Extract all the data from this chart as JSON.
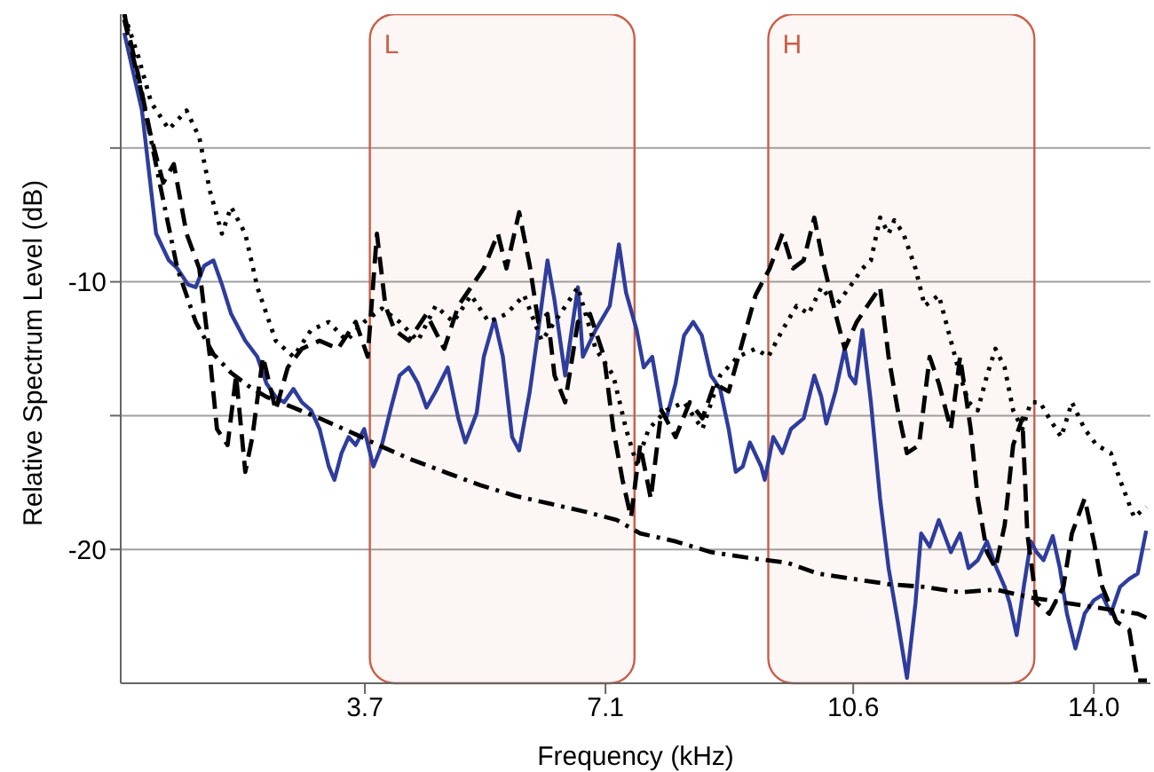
{
  "chart_data": {
    "type": "line",
    "xlabel": "Frequency (kHz)",
    "ylabel": "Relative Spectrum Level (dB)",
    "xlim": [
      0.25,
      14.8
    ],
    "xticks": [
      3.7,
      7.1,
      10.6,
      {
        "value": 14,
        "label": "14.0"
      }
    ],
    "ylim": [
      -25,
      0
    ],
    "yticks": [
      -20,
      {
        "value": -15,
        "label": null
      },
      -10,
      {
        "value": -5,
        "label": null
      }
    ],
    "grid": "y",
    "legend": false,
    "marker": "none",
    "bands": [
      {
        "axis": "x",
        "from": 3.77,
        "to": 7.51,
        "label": "L",
        "color": "#c8604a"
      },
      {
        "axis": "x",
        "from": 9.4,
        "to": 13.16,
        "label": "H",
        "color": "#c8604a"
      }
    ],
    "series": [
      {
        "color": "#2e3d9c",
        "line_style": "solid",
        "x": [
          0.3,
          0.55,
          0.75,
          0.93,
          1.05,
          1.2,
          1.31,
          1.43,
          1.56,
          1.68,
          1.81,
          2.01,
          2.18,
          2.31,
          2.44,
          2.56,
          2.69,
          2.81,
          2.94,
          3.06,
          3.19,
          3.27,
          3.37,
          3.47,
          3.57,
          3.69,
          3.82,
          3.94,
          4.07,
          4.19,
          4.32,
          4.45,
          4.57,
          4.7,
          4.87,
          5.02,
          5.12,
          5.28,
          5.38,
          5.53,
          5.65,
          5.78,
          5.88,
          6.03,
          6.13,
          6.28,
          6.38,
          6.53,
          6.71,
          6.78,
          6.96,
          7.16,
          7.29,
          7.39,
          7.54,
          7.64,
          7.76,
          7.89,
          7.96,
          8.09,
          8.21,
          8.34,
          8.46,
          8.59,
          8.72,
          8.84,
          8.94,
          9.04,
          9.14,
          9.3,
          9.35,
          9.47,
          9.6,
          9.72,
          9.9,
          10.05,
          10.15,
          10.22,
          10.35,
          10.48,
          10.55,
          10.63,
          10.73,
          10.85,
          10.98,
          11.1,
          11.23,
          11.36,
          11.48,
          11.56,
          11.68,
          11.81,
          11.98,
          12.11,
          12.23,
          12.36,
          12.49,
          12.61,
          12.74,
          12.81,
          12.91,
          13.01,
          13.11,
          13.19,
          13.29,
          13.42,
          13.52,
          13.62,
          13.74,
          13.87,
          14.0,
          14.12,
          14.24,
          14.37,
          14.5,
          14.62,
          14.74
        ],
        "values": [
          -0.7,
          -3.6,
          -8.2,
          -9.2,
          -9.5,
          -10.1,
          -10.2,
          -9.4,
          -9.2,
          -10.1,
          -11.2,
          -12.2,
          -12.8,
          -13.8,
          -14.3,
          -14.5,
          -14.0,
          -14.5,
          -14.8,
          -15.5,
          -16.9,
          -17.4,
          -16.4,
          -15.8,
          -16.1,
          -15.5,
          -16.9,
          -16.1,
          -14.7,
          -13.5,
          -13.2,
          -13.8,
          -14.7,
          -14.1,
          -13.2,
          -15.1,
          -16.0,
          -14.9,
          -12.8,
          -11.4,
          -12.8,
          -15.8,
          -16.3,
          -14.1,
          -12.2,
          -9.2,
          -10.7,
          -13.5,
          -10.2,
          -12.8,
          -11.8,
          -10.9,
          -8.6,
          -10.4,
          -11.8,
          -13.2,
          -12.8,
          -14.8,
          -15.1,
          -13.8,
          -12.0,
          -11.5,
          -12.0,
          -13.5,
          -14.0,
          -15.5,
          -17.1,
          -16.9,
          -16.0,
          -16.9,
          -17.4,
          -15.8,
          -16.4,
          -15.5,
          -15.1,
          -13.5,
          -14.3,
          -15.3,
          -14.1,
          -12.5,
          -13.5,
          -13.8,
          -11.8,
          -14.5,
          -18.1,
          -20.7,
          -22.7,
          -24.8,
          -22.0,
          -19.4,
          -19.9,
          -18.9,
          -20.1,
          -19.4,
          -20.7,
          -20.4,
          -19.7,
          -20.6,
          -21.4,
          -22.0,
          -23.2,
          -21.4,
          -19.7,
          -20.1,
          -20.4,
          -19.5,
          -20.7,
          -22.4,
          -23.7,
          -22.4,
          -21.9,
          -21.7,
          -22.4,
          -21.4,
          -21.1,
          -20.9,
          -19.3
        ]
      },
      {
        "color": "#000000",
        "line_style": "dashdot",
        "x": [
          0.3,
          0.55,
          0.8,
          1.05,
          1.31,
          1.56,
          1.81,
          2.06,
          2.31,
          2.69,
          3.06,
          3.57,
          3.89,
          4.32,
          4.82,
          5.33,
          5.83,
          6.33,
          6.83,
          7.26,
          7.59,
          8.09,
          8.59,
          9.09,
          9.67,
          10.1,
          10.6,
          11.1,
          11.61,
          12.11,
          12.61,
          13.11,
          13.62,
          14.12,
          14.62,
          14.78
        ],
        "values": [
          -0.2,
          -3.0,
          -6.3,
          -9.5,
          -11.5,
          -12.7,
          -13.4,
          -13.9,
          -14.3,
          -14.7,
          -15.1,
          -15.7,
          -16.1,
          -16.6,
          -17.1,
          -17.6,
          -18.0,
          -18.3,
          -18.6,
          -18.9,
          -19.4,
          -19.7,
          -20.1,
          -20.3,
          -20.5,
          -20.9,
          -21.1,
          -21.3,
          -21.4,
          -21.6,
          -21.5,
          -21.8,
          -22.0,
          -22.2,
          -22.4,
          -22.6
        ]
      },
      {
        "color": "#000000",
        "line_style": "dashed",
        "x": [
          0.3,
          0.5,
          0.68,
          0.85,
          1.0,
          1.18,
          1.36,
          1.51,
          1.61,
          1.76,
          1.88,
          2.01,
          2.11,
          2.26,
          2.44,
          2.61,
          2.81,
          3.06,
          3.32,
          3.57,
          3.74,
          3.87,
          3.99,
          4.12,
          4.32,
          4.57,
          4.82,
          5.02,
          5.2,
          5.38,
          5.58,
          5.7,
          5.88,
          6.03,
          6.15,
          6.28,
          6.38,
          6.53,
          6.71,
          6.88,
          7.08,
          7.21,
          7.34,
          7.46,
          7.59,
          7.74,
          7.89,
          8.09,
          8.29,
          8.47,
          8.64,
          8.84,
          9.04,
          9.22,
          9.42,
          9.6,
          9.75,
          9.9,
          10.05,
          10.17,
          10.35,
          10.48,
          10.65,
          10.8,
          10.98,
          11.1,
          11.23,
          11.36,
          11.53,
          11.68,
          11.81,
          11.98,
          12.11,
          12.26,
          12.36,
          12.49,
          12.61,
          12.74,
          12.86,
          12.99,
          13.06,
          13.19,
          13.37,
          13.57,
          13.69,
          13.87,
          14.0,
          14.12,
          14.32,
          14.5,
          14.62,
          14.75
        ],
        "values": [
          0,
          -2.3,
          -4.6,
          -6.3,
          -5.6,
          -8.2,
          -9.5,
          -12.8,
          -15.5,
          -16.1,
          -13.5,
          -17.1,
          -15.8,
          -12.8,
          -14.8,
          -13.2,
          -12.5,
          -12.2,
          -12.5,
          -11.5,
          -12.8,
          -8.2,
          -10.9,
          -11.8,
          -12.2,
          -11.2,
          -12.5,
          -10.9,
          -10.2,
          -9.5,
          -8.2,
          -9.5,
          -7.4,
          -9.4,
          -11.5,
          -11.2,
          -13.5,
          -14.5,
          -11.5,
          -11.2,
          -12.8,
          -15.5,
          -17.4,
          -18.8,
          -16.1,
          -18.1,
          -14.8,
          -15.8,
          -14.5,
          -15.1,
          -13.8,
          -14.1,
          -12.2,
          -10.5,
          -9.5,
          -8.2,
          -9.5,
          -9.2,
          -7.6,
          -9.2,
          -11.2,
          -12.5,
          -11.5,
          -10.9,
          -10.2,
          -12.8,
          -14.8,
          -16.4,
          -16.1,
          -12.8,
          -13.8,
          -15.5,
          -12.8,
          -15.5,
          -18.1,
          -20.1,
          -20.7,
          -19.1,
          -16.1,
          -15.1,
          -19.4,
          -22.0,
          -22.4,
          -21.4,
          -19.4,
          -18.1,
          -19.7,
          -21.4,
          -22.7,
          -23.0,
          -24.9,
          -24.9
        ]
      },
      {
        "color": "#000000",
        "line_style": "dotted",
        "x": [
          0.3,
          0.5,
          0.68,
          0.93,
          1.18,
          1.36,
          1.51,
          1.68,
          1.81,
          2.01,
          2.18,
          2.44,
          2.69,
          2.94,
          3.19,
          3.44,
          3.69,
          3.94,
          4.19,
          4.45,
          4.7,
          4.95,
          5.2,
          5.45,
          5.7,
          5.95,
          6.2,
          6.46,
          6.71,
          6.96,
          7.21,
          7.39,
          7.54,
          7.71,
          7.96,
          8.21,
          8.47,
          8.72,
          8.97,
          9.22,
          9.4,
          9.6,
          9.8,
          9.97,
          10.15,
          10.35,
          10.55,
          10.73,
          10.85,
          10.98,
          11.1,
          11.18,
          11.31,
          11.48,
          11.61,
          11.81,
          11.98,
          12.11,
          12.23,
          12.36,
          12.49,
          12.61,
          12.74,
          12.86,
          12.99,
          13.11,
          13.24,
          13.37,
          13.54,
          13.69,
          13.87,
          14.04,
          14.24,
          14.37,
          14.57,
          14.74
        ],
        "values": [
          0,
          -1.6,
          -3.3,
          -4.3,
          -3.6,
          -4.6,
          -6.6,
          -8.2,
          -7.2,
          -8.2,
          -10.2,
          -12.2,
          -12.8,
          -11.8,
          -11.5,
          -12.2,
          -11.5,
          -11.0,
          -11.5,
          -12.2,
          -10.9,
          -11.5,
          -10.5,
          -11.5,
          -11.2,
          -10.5,
          -12.2,
          -11.2,
          -10.2,
          -12.5,
          -13.5,
          -15.5,
          -16.8,
          -15.5,
          -14.8,
          -14.5,
          -15.5,
          -13.5,
          -12.8,
          -12.5,
          -12.8,
          -11.8,
          -10.9,
          -11.2,
          -10.2,
          -10.9,
          -10.2,
          -9.5,
          -9.2,
          -7.6,
          -8.2,
          -7.7,
          -8.2,
          -9.5,
          -10.9,
          -10.5,
          -12.2,
          -13.5,
          -14.5,
          -14.8,
          -13.5,
          -12.5,
          -13.2,
          -14.8,
          -15.5,
          -14.5,
          -14.5,
          -15.1,
          -15.8,
          -14.5,
          -15.5,
          -16.1,
          -16.4,
          -17.4,
          -18.8,
          -18.4
        ]
      }
    ]
  }
}
